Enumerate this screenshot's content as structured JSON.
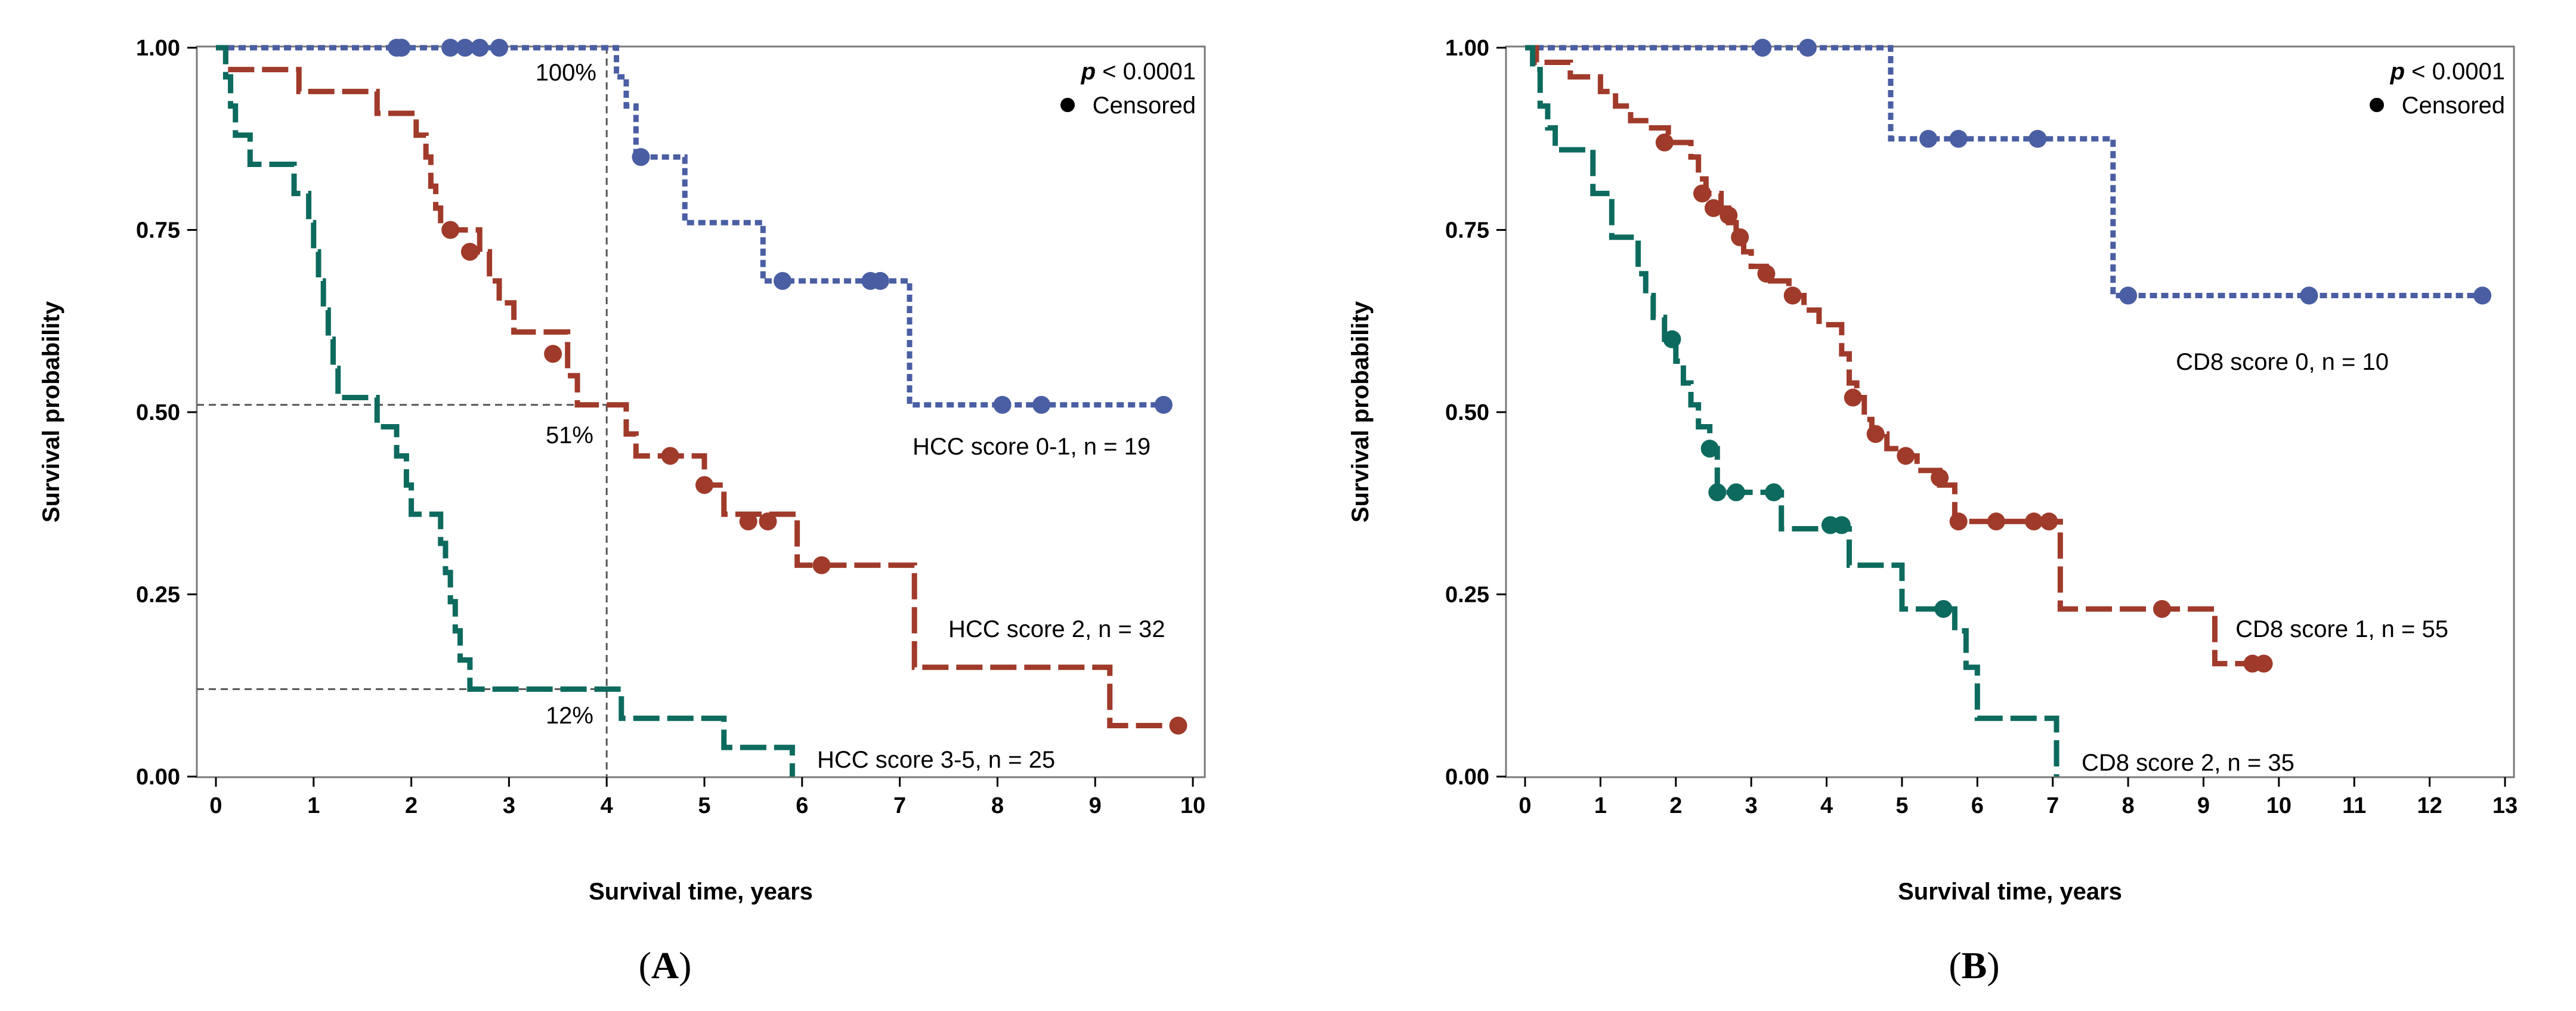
{
  "chart_data": [
    {
      "type": "line",
      "subtype": "kaplan-meier",
      "panel_label": "A",
      "xlabel": "Survival time, years",
      "ylabel": "Survival probability",
      "xlim": [
        0,
        10
      ],
      "ylim": [
        0,
        1
      ],
      "xticks": [
        "0",
        "1",
        "2",
        "3",
        "4",
        "5",
        "6",
        "7",
        "8",
        "9",
        "10"
      ],
      "yticks": [
        "0.00",
        "0.25",
        "0.50",
        "0.75",
        "1.00"
      ],
      "p_text": "p",
      "p_rest": " < 0.0001",
      "censored_label": "Censored",
      "reference_lines": [
        {
          "axis": "x",
          "value": 4
        },
        {
          "axis": "y",
          "value": 0.51
        },
        {
          "axis": "y",
          "value": 0.12
        }
      ],
      "annotations": [
        "100%",
        "51%",
        "12%"
      ],
      "series": [
        {
          "name": "HCC score 0-1, n = 19",
          "color": "#4a5ea3",
          "style": "dotted",
          "steps": [
            [
              0,
              1.0
            ],
            [
              4.1,
              0.96
            ],
            [
              4.2,
              0.92
            ],
            [
              4.3,
              0.85
            ],
            [
              4.8,
              0.76
            ],
            [
              5.6,
              0.68
            ],
            [
              7.1,
              0.51
            ],
            [
              9.7,
              0.51
            ]
          ],
          "censored": [
            [
              1.85,
              1.0
            ],
            [
              1.9,
              1.0
            ],
            [
              2.4,
              1.0
            ],
            [
              2.55,
              1.0
            ],
            [
              2.7,
              1.0
            ],
            [
              2.9,
              1.0
            ],
            [
              4.35,
              0.85
            ],
            [
              5.8,
              0.68
            ],
            [
              6.7,
              0.68
            ],
            [
              6.8,
              0.68
            ],
            [
              8.05,
              0.51
            ],
            [
              8.45,
              0.51
            ],
            [
              9.7,
              0.51
            ]
          ]
        },
        {
          "name": "HCC score 2, n = 32",
          "color": "#a03a2a",
          "style": "dashed",
          "steps": [
            [
              0,
              1.0
            ],
            [
              0.1,
              0.97
            ],
            [
              0.85,
              0.94
            ],
            [
              1.65,
              0.91
            ],
            [
              2.05,
              0.88
            ],
            [
              2.15,
              0.85
            ],
            [
              2.2,
              0.81
            ],
            [
              2.25,
              0.78
            ],
            [
              2.3,
              0.75
            ],
            [
              2.7,
              0.72
            ],
            [
              2.8,
              0.68
            ],
            [
              2.9,
              0.65
            ],
            [
              3.05,
              0.61
            ],
            [
              3.6,
              0.55
            ],
            [
              3.7,
              0.51
            ],
            [
              4.2,
              0.47
            ],
            [
              4.3,
              0.44
            ],
            [
              5.0,
              0.4
            ],
            [
              5.2,
              0.36
            ],
            [
              5.95,
              0.29
            ],
            [
              7.15,
              0.15
            ],
            [
              9.15,
              0.07
            ],
            [
              9.8,
              0.07
            ]
          ],
          "censored": [
            [
              2.4,
              0.75
            ],
            [
              2.6,
              0.72
            ],
            [
              3.45,
              0.58
            ],
            [
              4.65,
              0.44
            ],
            [
              5.0,
              0.4
            ],
            [
              5.45,
              0.35
            ],
            [
              5.65,
              0.35
            ],
            [
              6.2,
              0.29
            ],
            [
              9.85,
              0.07
            ]
          ]
        },
        {
          "name": "HCC score 3-5, n = 25",
          "color": "#0d6a5e",
          "style": "dashed",
          "steps": [
            [
              0,
              1.0
            ],
            [
              0.1,
              0.96
            ],
            [
              0.15,
              0.92
            ],
            [
              0.2,
              0.88
            ],
            [
              0.35,
              0.84
            ],
            [
              0.8,
              0.8
            ],
            [
              0.95,
              0.76
            ],
            [
              1.0,
              0.72
            ],
            [
              1.05,
              0.68
            ],
            [
              1.1,
              0.64
            ],
            [
              1.15,
              0.6
            ],
            [
              1.2,
              0.56
            ],
            [
              1.25,
              0.52
            ],
            [
              1.65,
              0.48
            ],
            [
              1.85,
              0.44
            ],
            [
              1.95,
              0.4
            ],
            [
              2.0,
              0.36
            ],
            [
              2.3,
              0.32
            ],
            [
              2.35,
              0.28
            ],
            [
              2.4,
              0.24
            ],
            [
              2.45,
              0.2
            ],
            [
              2.5,
              0.16
            ],
            [
              2.6,
              0.12
            ],
            [
              4.15,
              0.08
            ],
            [
              5.2,
              0.04
            ],
            [
              5.9,
              0.0
            ]
          ],
          "censored": []
        }
      ]
    },
    {
      "type": "line",
      "subtype": "kaplan-meier",
      "panel_label": "B",
      "xlabel": "Survival time, years",
      "ylabel": "Survival probability",
      "xlim": [
        0,
        13
      ],
      "ylim": [
        0,
        1
      ],
      "xticks": [
        "0",
        "1",
        "2",
        "3",
        "4",
        "5",
        "6",
        "7",
        "8",
        "9",
        "10",
        "11",
        "12",
        "13"
      ],
      "yticks": [
        "0.00",
        "0.25",
        "0.50",
        "0.75",
        "1.00"
      ],
      "p_text": "p",
      "p_rest": " < 0.0001",
      "censored_label": "Censored",
      "series": [
        {
          "name": "CD8 score 0, n = 10",
          "color": "#4a5ea3",
          "style": "dotted",
          "steps": [
            [
              0,
              1.0
            ],
            [
              4.85,
              0.875
            ],
            [
              7.8,
              0.66
            ],
            [
              12.7,
              0.66
            ]
          ],
          "censored": [
            [
              3.15,
              1.0
            ],
            [
              3.75,
              1.0
            ],
            [
              5.35,
              0.875
            ],
            [
              5.75,
              0.875
            ],
            [
              6.8,
              0.875
            ],
            [
              8.0,
              0.66
            ],
            [
              10.4,
              0.66
            ],
            [
              12.7,
              0.66
            ]
          ]
        },
        {
          "name": "CD8 score 1, n = 55",
          "color": "#a03a2a",
          "style": "dashed",
          "steps": [
            [
              0,
              1.0
            ],
            [
              0.15,
              0.98
            ],
            [
              0.6,
              0.96
            ],
            [
              1.0,
              0.94
            ],
            [
              1.2,
              0.92
            ],
            [
              1.4,
              0.9
            ],
            [
              1.6,
              0.89
            ],
            [
              1.9,
              0.87
            ],
            [
              2.2,
              0.85
            ],
            [
              2.3,
              0.82
            ],
            [
              2.4,
              0.8
            ],
            [
              2.6,
              0.78
            ],
            [
              2.7,
              0.76
            ],
            [
              2.8,
              0.74
            ],
            [
              2.9,
              0.72
            ],
            [
              3.0,
              0.7
            ],
            [
              3.2,
              0.68
            ],
            [
              3.5,
              0.66
            ],
            [
              3.7,
              0.64
            ],
            [
              3.9,
              0.62
            ],
            [
              4.2,
              0.58
            ],
            [
              4.3,
              0.54
            ],
            [
              4.4,
              0.52
            ],
            [
              4.5,
              0.49
            ],
            [
              4.6,
              0.47
            ],
            [
              4.8,
              0.45
            ],
            [
              5.0,
              0.44
            ],
            [
              5.2,
              0.42
            ],
            [
              5.5,
              0.4
            ],
            [
              5.7,
              0.35
            ],
            [
              6.1,
              0.35
            ],
            [
              7.1,
              0.23
            ],
            [
              9.15,
              0.155
            ],
            [
              9.85,
              0.155
            ]
          ],
          "censored": [
            [
              1.85,
              0.87
            ],
            [
              2.35,
              0.8
            ],
            [
              2.5,
              0.78
            ],
            [
              2.7,
              0.77
            ],
            [
              2.85,
              0.74
            ],
            [
              3.2,
              0.69
            ],
            [
              3.55,
              0.66
            ],
            [
              4.35,
              0.52
            ],
            [
              4.65,
              0.47
            ],
            [
              5.05,
              0.44
            ],
            [
              5.5,
              0.41
            ],
            [
              5.75,
              0.35
            ],
            [
              6.25,
              0.35
            ],
            [
              6.75,
              0.35
            ],
            [
              6.95,
              0.35
            ],
            [
              8.45,
              0.23
            ],
            [
              9.65,
              0.155
            ],
            [
              9.8,
              0.155
            ]
          ]
        },
        {
          "name": "CD8 score 2, n = 35",
          "color": "#0d6a5e",
          "style": "dashed",
          "steps": [
            [
              0,
              1.0
            ],
            [
              0.1,
              0.97
            ],
            [
              0.2,
              0.92
            ],
            [
              0.3,
              0.89
            ],
            [
              0.4,
              0.86
            ],
            [
              0.9,
              0.8
            ],
            [
              1.15,
              0.74
            ],
            [
              1.5,
              0.69
            ],
            [
              1.6,
              0.66
            ],
            [
              1.7,
              0.63
            ],
            [
              1.85,
              0.6
            ],
            [
              2.0,
              0.57
            ],
            [
              2.1,
              0.54
            ],
            [
              2.2,
              0.51
            ],
            [
              2.3,
              0.48
            ],
            [
              2.45,
              0.45
            ],
            [
              2.55,
              0.39
            ],
            [
              3.4,
              0.34
            ],
            [
              4.0,
              0.34
            ],
            [
              4.3,
              0.29
            ],
            [
              5.0,
              0.23
            ],
            [
              5.7,
              0.2
            ],
            [
              5.85,
              0.15
            ],
            [
              6.0,
              0.08
            ],
            [
              6.3,
              0.08
            ],
            [
              7.05,
              0.0
            ]
          ],
          "censored": [
            [
              1.95,
              0.6
            ],
            [
              2.45,
              0.45
            ],
            [
              2.55,
              0.39
            ],
            [
              2.8,
              0.39
            ],
            [
              3.3,
              0.39
            ],
            [
              4.05,
              0.345
            ],
            [
              4.2,
              0.345
            ],
            [
              5.55,
              0.23
            ]
          ]
        }
      ]
    }
  ]
}
